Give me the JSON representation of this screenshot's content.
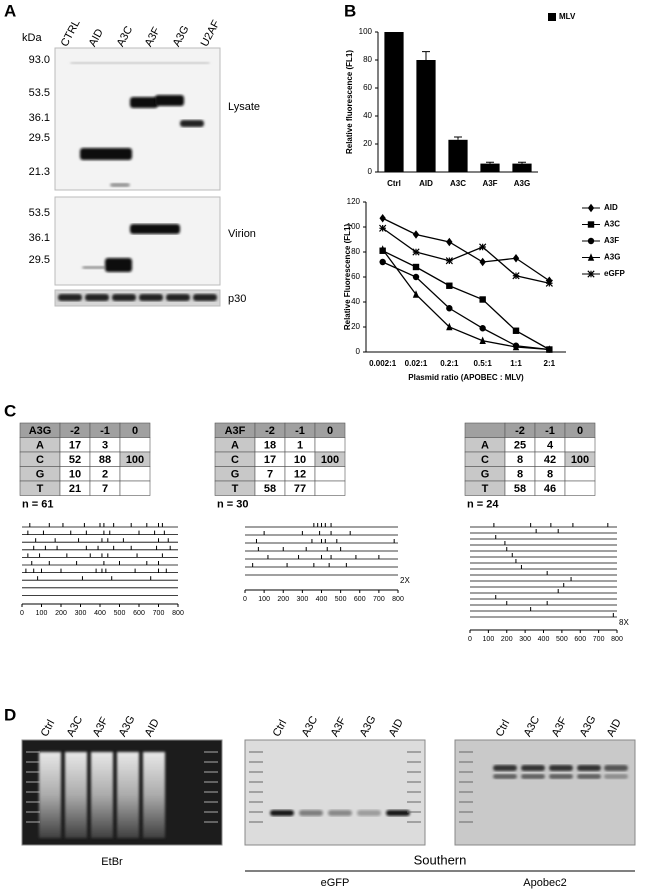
{
  "panel_labels": [
    "A",
    "B",
    "C",
    "D"
  ],
  "panel_a": {
    "unit": "kDa",
    "lanes": [
      "CTRL",
      "AID",
      "A3C",
      "A3F",
      "A3G",
      "U2AF"
    ],
    "lysate": {
      "label": "Lysate",
      "markers": [
        "93.0",
        "53.5",
        "36.1",
        "29.5",
        "21.3"
      ]
    },
    "virion": {
      "label": "Virion",
      "markers": [
        "53.5",
        "36.1",
        "29.5"
      ]
    },
    "loading": {
      "label": "p30"
    }
  },
  "chart_data": [
    {
      "type": "bar",
      "y_label": "Relative fluorescence (FL1)",
      "categories": [
        "Ctrl",
        "AID",
        "A3C",
        "A3F",
        "A3G"
      ],
      "series": [
        {
          "name": "MLV",
          "color": "#000000",
          "values": [
            100,
            80,
            23,
            6,
            6
          ],
          "errors": [
            null,
            6,
            2,
            1,
            1
          ]
        }
      ],
      "ylim": [
        0,
        100
      ],
      "yticks": [
        0,
        20,
        40,
        60,
        80,
        100
      ],
      "legend": "top-right"
    },
    {
      "type": "line",
      "y_label": "Relative Fluorescence (FL1)",
      "x_label": "Plasmid ratio (APOBEC : MLV)",
      "categories": [
        "0.002:1",
        "0.02:1",
        "0.2:1",
        "0.5:1",
        "1:1",
        "2:1"
      ],
      "series": [
        {
          "name": "AID",
          "color": "#000000",
          "marker": "diamond",
          "values": [
            107,
            94,
            88,
            72,
            75,
            57
          ]
        },
        {
          "name": "A3C",
          "color": "#000000",
          "marker": "square",
          "values": [
            81,
            68,
            53,
            42,
            17,
            2
          ]
        },
        {
          "name": "A3F",
          "color": "#000000",
          "marker": "circle",
          "values": [
            72,
            60,
            35,
            19,
            5,
            2
          ]
        },
        {
          "name": "A3G",
          "color": "#000000",
          "marker": "triangle",
          "values": [
            82,
            46,
            20,
            9,
            4,
            2
          ]
        },
        {
          "name": "eGFP",
          "color": "#000000",
          "marker": "star",
          "values": [
            99,
            80,
            73,
            84,
            61,
            55
          ]
        }
      ],
      "ylim": [
        0,
        120
      ],
      "yticks": [
        0,
        20,
        40,
        60,
        80,
        100,
        120
      ],
      "legend": "right"
    }
  ],
  "panel_c": {
    "tables": [
      {
        "header": [
          "A3G",
          "-2",
          "-1",
          "0"
        ],
        "rows": [
          [
            "A",
            17,
            3,
            null
          ],
          [
            "C",
            52,
            88,
            100
          ],
          [
            "G",
            10,
            2,
            null
          ],
          [
            "T",
            21,
            7,
            null
          ]
        ],
        "n": "n = 61"
      },
      {
        "header": [
          "A3F",
          "-2",
          "-1",
          "0"
        ],
        "rows": [
          [
            "A",
            18,
            1,
            null
          ],
          [
            "C",
            17,
            10,
            100
          ],
          [
            "G",
            7,
            12,
            null
          ],
          [
            "T",
            58,
            77,
            null
          ]
        ],
        "n": "n = 30"
      },
      {
        "header": [
          null,
          "-2",
          "-1",
          "0"
        ],
        "rows": [
          [
            "A",
            25,
            4,
            null
          ],
          [
            "C",
            8,
            42,
            100
          ],
          [
            "G",
            8,
            8,
            null
          ],
          [
            "T",
            58,
            46,
            null
          ]
        ],
        "n": "n = 24"
      }
    ],
    "plots": [
      {
        "xlim": [
          0,
          800
        ],
        "xticks": [
          0,
          100,
          200,
          300,
          400,
          500,
          600,
          700,
          800
        ],
        "sequences": [
          [
            40,
            140,
            210,
            320,
            400,
            420,
            470,
            560,
            640,
            700,
            720
          ],
          [
            30,
            110,
            250,
            330,
            420,
            450,
            600,
            680,
            730
          ],
          [
            70,
            170,
            290,
            410,
            440,
            520,
            700,
            750
          ],
          [
            60,
            120,
            180,
            330,
            390,
            470,
            560,
            690,
            760
          ],
          [
            30,
            90,
            230,
            350,
            410,
            440,
            590,
            720
          ],
          [
            50,
            140,
            280,
            420,
            500,
            640,
            700
          ],
          [
            20,
            60,
            100,
            200,
            380,
            410,
            430,
            580,
            700,
            740
          ],
          [
            80,
            310,
            460,
            660
          ],
          [],
          []
        ]
      },
      {
        "xlim": [
          0,
          800
        ],
        "xticks": [
          0,
          100,
          200,
          300,
          400,
          500,
          600,
          700,
          800
        ],
        "note": "2X",
        "sequences": [
          [
            360,
            380,
            400,
            420,
            450
          ],
          [
            100,
            300,
            390,
            450,
            550
          ],
          [
            60,
            350,
            400,
            420,
            480,
            780
          ],
          [
            70,
            200,
            320,
            430,
            500
          ],
          [
            120,
            280,
            400,
            450,
            580,
            700
          ],
          [
            40,
            220,
            360,
            440,
            530
          ],
          []
        ]
      },
      {
        "xlim": [
          0,
          800
        ],
        "xticks": [
          0,
          100,
          200,
          300,
          400,
          500,
          600,
          700,
          800
        ],
        "note": "8X",
        "sequences": [
          [
            130,
            330,
            440,
            560,
            750
          ],
          [
            360,
            480
          ],
          [
            140
          ],
          [
            190
          ],
          [
            200
          ],
          [
            230
          ],
          [
            250
          ],
          [
            280
          ],
          [
            420
          ],
          [
            550
          ],
          [
            510
          ],
          [
            480
          ],
          [
            140
          ],
          [
            200,
            420
          ],
          [
            330
          ],
          [
            780
          ]
        ]
      }
    ]
  },
  "panel_d": {
    "gels": [
      {
        "lanes": [
          "Ctrl",
          "A3C",
          "A3F",
          "A3G",
          "AID"
        ],
        "caption": "EtBr"
      },
      {
        "lanes": [
          "Ctrl",
          "A3C",
          "A3F",
          "A3G",
          "AID"
        ],
        "caption": "eGFP"
      },
      {
        "lanes": [
          "Ctrl",
          "A3C",
          "A3F",
          "A3G",
          "AID"
        ],
        "caption": "Apobec2"
      }
    ],
    "group_caption": "Southern"
  }
}
